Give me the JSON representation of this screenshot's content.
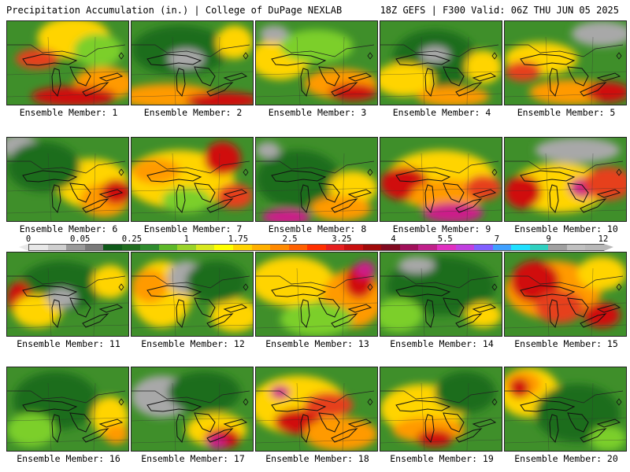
{
  "header": {
    "left": "Precipitation Accumulation (in.) | College of DuPage NEXLAB",
    "right": "18Z GEFS | F300 Valid: 06Z THU JUN 05 2025"
  },
  "members": [
    {
      "label": "Ensemble Member: 1",
      "blobs": [
        [
          "#ffd400",
          0.55,
          0.2,
          0.3,
          0.25
        ],
        [
          "#e6401e",
          0.25,
          0.45,
          0.18,
          0.12
        ],
        [
          "#ff9a00",
          0.8,
          0.75,
          0.25,
          0.2
        ],
        [
          "#d01010",
          0.55,
          0.9,
          0.35,
          0.12
        ],
        [
          "#7ccf2a",
          0.75,
          0.35,
          0.2,
          0.2
        ]
      ]
    },
    {
      "label": "Ensemble Member: 2",
      "blobs": [
        [
          "#1f6d1f",
          0.4,
          0.35,
          0.4,
          0.3
        ],
        [
          "#a8a8a8",
          0.45,
          0.45,
          0.15,
          0.12
        ],
        [
          "#ff9a00",
          0.3,
          0.9,
          0.4,
          0.15
        ],
        [
          "#d01010",
          0.75,
          0.95,
          0.3,
          0.1
        ],
        [
          "#ffd400",
          0.85,
          0.25,
          0.15,
          0.2
        ]
      ]
    },
    {
      "label": "Ensemble Member: 3",
      "blobs": [
        [
          "#ffd400",
          0.2,
          0.45,
          0.25,
          0.25
        ],
        [
          "#ff9a00",
          0.7,
          0.75,
          0.3,
          0.18
        ],
        [
          "#d01010",
          0.8,
          0.85,
          0.2,
          0.1
        ],
        [
          "#7ccf2a",
          0.5,
          0.3,
          0.3,
          0.2
        ],
        [
          "#a8a8a8",
          0.15,
          0.15,
          0.12,
          0.1
        ]
      ]
    },
    {
      "label": "Ensemble Member: 4",
      "blobs": [
        [
          "#1f6d1f",
          0.45,
          0.45,
          0.35,
          0.35
        ],
        [
          "#ffd400",
          0.2,
          0.7,
          0.25,
          0.2
        ],
        [
          "#ffd400",
          0.85,
          0.55,
          0.15,
          0.2
        ],
        [
          "#ff9a00",
          0.6,
          0.9,
          0.3,
          0.12
        ],
        [
          "#a8a8a8",
          0.45,
          0.4,
          0.12,
          0.1
        ]
      ]
    },
    {
      "label": "Ensemble Member: 5",
      "blobs": [
        [
          "#a8a8a8",
          0.8,
          0.15,
          0.25,
          0.15
        ],
        [
          "#ffd400",
          0.3,
          0.45,
          0.3,
          0.2
        ],
        [
          "#ff9a00",
          0.55,
          0.85,
          0.35,
          0.15
        ],
        [
          "#d01010",
          0.85,
          0.85,
          0.18,
          0.12
        ],
        [
          "#e6401e",
          0.15,
          0.6,
          0.15,
          0.12
        ]
      ]
    },
    {
      "label": "Ensemble Member: 6",
      "blobs": [
        [
          "#a8a8a8",
          0.1,
          0.1,
          0.15,
          0.15
        ],
        [
          "#ffd400",
          0.7,
          0.55,
          0.3,
          0.3
        ],
        [
          "#ff9a00",
          0.8,
          0.75,
          0.2,
          0.2
        ],
        [
          "#d01010",
          0.9,
          0.65,
          0.12,
          0.15
        ],
        [
          "#1f6d1f",
          0.3,
          0.35,
          0.3,
          0.3
        ]
      ]
    },
    {
      "label": "Ensemble Member: 7",
      "blobs": [
        [
          "#ffd400",
          0.4,
          0.5,
          0.45,
          0.35
        ],
        [
          "#ff9a00",
          0.2,
          0.4,
          0.2,
          0.15
        ],
        [
          "#d01010",
          0.75,
          0.25,
          0.15,
          0.2
        ],
        [
          "#e6401e",
          0.85,
          0.7,
          0.15,
          0.15
        ],
        [
          "#7ccf2a",
          0.45,
          0.75,
          0.2,
          0.15
        ]
      ]
    },
    {
      "label": "Ensemble Member: 8",
      "blobs": [
        [
          "#1f6d1f",
          0.35,
          0.5,
          0.35,
          0.35
        ],
        [
          "#ffd400",
          0.8,
          0.6,
          0.2,
          0.2
        ],
        [
          "#ff9a00",
          0.7,
          0.85,
          0.25,
          0.15
        ],
        [
          "#cc1a8a",
          0.25,
          0.95,
          0.2,
          0.1
        ],
        [
          "#a8a8a8",
          0.1,
          0.15,
          0.1,
          0.1
        ]
      ]
    },
    {
      "label": "Ensemble Member: 9",
      "blobs": [
        [
          "#ffd400",
          0.5,
          0.5,
          0.45,
          0.35
        ],
        [
          "#d01010",
          0.2,
          0.55,
          0.2,
          0.2
        ],
        [
          "#ff9a00",
          0.55,
          0.7,
          0.3,
          0.2
        ],
        [
          "#cc1a8a",
          0.6,
          0.9,
          0.25,
          0.12
        ],
        [
          "#e6401e",
          0.85,
          0.6,
          0.15,
          0.15
        ]
      ]
    },
    {
      "label": "Ensemble Member: 10",
      "blobs": [
        [
          "#a8a8a8",
          0.6,
          0.15,
          0.35,
          0.15
        ],
        [
          "#ffd400",
          0.45,
          0.6,
          0.4,
          0.3
        ],
        [
          "#d01010",
          0.15,
          0.65,
          0.15,
          0.2
        ],
        [
          "#cc1a8a",
          0.65,
          0.6,
          0.12,
          0.12
        ],
        [
          "#e6401e",
          0.85,
          0.55,
          0.2,
          0.2
        ]
      ]
    },
    {
      "label": "Ensemble Member: 11",
      "blobs": [
        [
          "#1f6d1f",
          0.45,
          0.4,
          0.35,
          0.3
        ],
        [
          "#d01010",
          0.1,
          0.55,
          0.1,
          0.2
        ],
        [
          "#ffd400",
          0.25,
          0.7,
          0.2,
          0.2
        ],
        [
          "#ffd400",
          0.85,
          0.35,
          0.15,
          0.2
        ],
        [
          "#a8a8a8",
          0.45,
          0.55,
          0.12,
          0.12
        ]
      ]
    },
    {
      "label": "Ensemble Member: 12",
      "blobs": [
        [
          "#ffd400",
          0.25,
          0.5,
          0.25,
          0.4
        ],
        [
          "#ff9a00",
          0.15,
          0.4,
          0.15,
          0.2
        ],
        [
          "#a8a8a8",
          0.45,
          0.3,
          0.15,
          0.2
        ],
        [
          "#ffd400",
          0.85,
          0.75,
          0.2,
          0.2
        ],
        [
          "#1f6d1f",
          0.7,
          0.35,
          0.25,
          0.25
        ]
      ]
    },
    {
      "label": "Ensemble Member: 13",
      "blobs": [
        [
          "#ffd400",
          0.3,
          0.35,
          0.35,
          0.3
        ],
        [
          "#ff9a00",
          0.8,
          0.55,
          0.25,
          0.35
        ],
        [
          "#d01010",
          0.85,
          0.35,
          0.12,
          0.2
        ],
        [
          "#cc1a8a",
          0.9,
          0.2,
          0.08,
          0.1
        ],
        [
          "#7ccf2a",
          0.5,
          0.8,
          0.3,
          0.2
        ]
      ]
    },
    {
      "label": "Ensemble Member: 14",
      "blobs": [
        [
          "#1f6d1f",
          0.5,
          0.4,
          0.45,
          0.35
        ],
        [
          "#a8a8a8",
          0.3,
          0.15,
          0.15,
          0.1
        ],
        [
          "#ffd400",
          0.85,
          0.75,
          0.15,
          0.15
        ],
        [
          "#7ccf2a",
          0.15,
          0.75,
          0.2,
          0.2
        ]
      ]
    },
    {
      "label": "Ensemble Member: 15",
      "blobs": [
        [
          "#ff9a00",
          0.4,
          0.45,
          0.4,
          0.35
        ],
        [
          "#d01010",
          0.25,
          0.35,
          0.2,
          0.25
        ],
        [
          "#e6401e",
          0.45,
          0.65,
          0.2,
          0.2
        ],
        [
          "#d01010",
          0.8,
          0.75,
          0.15,
          0.15
        ],
        [
          "#ffd400",
          0.8,
          0.25,
          0.2,
          0.2
        ]
      ]
    },
    {
      "label": "Ensemble Member: 16",
      "blobs": [
        [
          "#1f6d1f",
          0.4,
          0.4,
          0.35,
          0.35
        ],
        [
          "#ffd400",
          0.85,
          0.6,
          0.15,
          0.25
        ],
        [
          "#ff9a00",
          0.9,
          0.8,
          0.1,
          0.12
        ],
        [
          "#7ccf2a",
          0.2,
          0.75,
          0.2,
          0.2
        ]
      ]
    },
    {
      "label": "Ensemble Member: 17",
      "blobs": [
        [
          "#a8a8a8",
          0.25,
          0.35,
          0.25,
          0.25
        ],
        [
          "#1f6d1f",
          0.6,
          0.3,
          0.3,
          0.25
        ],
        [
          "#ffd400",
          0.7,
          0.75,
          0.25,
          0.2
        ],
        [
          "#d01010",
          0.75,
          0.85,
          0.15,
          0.12
        ],
        [
          "#cc1a8a",
          0.7,
          0.9,
          0.08,
          0.08
        ]
      ]
    },
    {
      "label": "Ensemble Member: 18",
      "blobs": [
        [
          "#ffd400",
          0.35,
          0.45,
          0.4,
          0.35
        ],
        [
          "#d01010",
          0.35,
          0.65,
          0.2,
          0.15
        ],
        [
          "#e6401e",
          0.6,
          0.45,
          0.2,
          0.15
        ],
        [
          "#ff9a00",
          0.7,
          0.8,
          0.3,
          0.2
        ],
        [
          "#cc1a8a",
          0.2,
          0.3,
          0.08,
          0.08
        ]
      ]
    },
    {
      "label": "Ensemble Member: 19",
      "blobs": [
        [
          "#ffd400",
          0.35,
          0.5,
          0.35,
          0.3
        ],
        [
          "#ff9a00",
          0.4,
          0.75,
          0.3,
          0.15
        ],
        [
          "#d01010",
          0.45,
          0.85,
          0.15,
          0.1
        ],
        [
          "#1f6d1f",
          0.7,
          0.3,
          0.25,
          0.25
        ]
      ]
    },
    {
      "label": "Ensemble Member: 20",
      "blobs": [
        [
          "#ffd400",
          0.2,
          0.3,
          0.25,
          0.3
        ],
        [
          "#ff9a00",
          0.15,
          0.2,
          0.15,
          0.15
        ],
        [
          "#d01010",
          0.12,
          0.25,
          0.08,
          0.12
        ],
        [
          "#1f6d1f",
          0.6,
          0.55,
          0.35,
          0.35
        ],
        [
          "#7ccf2a",
          0.85,
          0.85,
          0.15,
          0.15
        ]
      ]
    }
  ],
  "scale": {
    "labels": [
      {
        "text": "0",
        "frac": 0.0
      },
      {
        "text": "0.05",
        "frac": 0.09
      },
      {
        "text": "0.25",
        "frac": 0.18
      },
      {
        "text": "1",
        "frac": 0.275
      },
      {
        "text": "1.75",
        "frac": 0.365
      },
      {
        "text": "2.5",
        "frac": 0.455
      },
      {
        "text": "3.25",
        "frac": 0.545
      },
      {
        "text": "4",
        "frac": 0.635
      },
      {
        "text": "5.5",
        "frac": 0.725
      },
      {
        "text": "7",
        "frac": 0.815
      },
      {
        "text": "9",
        "frac": 0.905
      },
      {
        "text": "12",
        "frac": 1.0
      }
    ],
    "colors": [
      "#e8e8e8",
      "#cfcfcf",
      "#9a9a9a",
      "#7a7a7a",
      "#0f5a1a",
      "#1f6d1f",
      "#2e8b2e",
      "#5db82a",
      "#9ad32a",
      "#d8e820",
      "#ffff00",
      "#ffd400",
      "#ffb000",
      "#ff8a00",
      "#ff6000",
      "#ff3000",
      "#e61e1e",
      "#c80f0f",
      "#a00a0a",
      "#800a20",
      "#a0105a",
      "#c0208a",
      "#e030c0",
      "#c040e0",
      "#8060ff",
      "#40a0ff",
      "#20e0ff",
      "#30d0c0",
      "#a0a0a0",
      "#c0c0c0",
      "#b8b8b8"
    ]
  }
}
